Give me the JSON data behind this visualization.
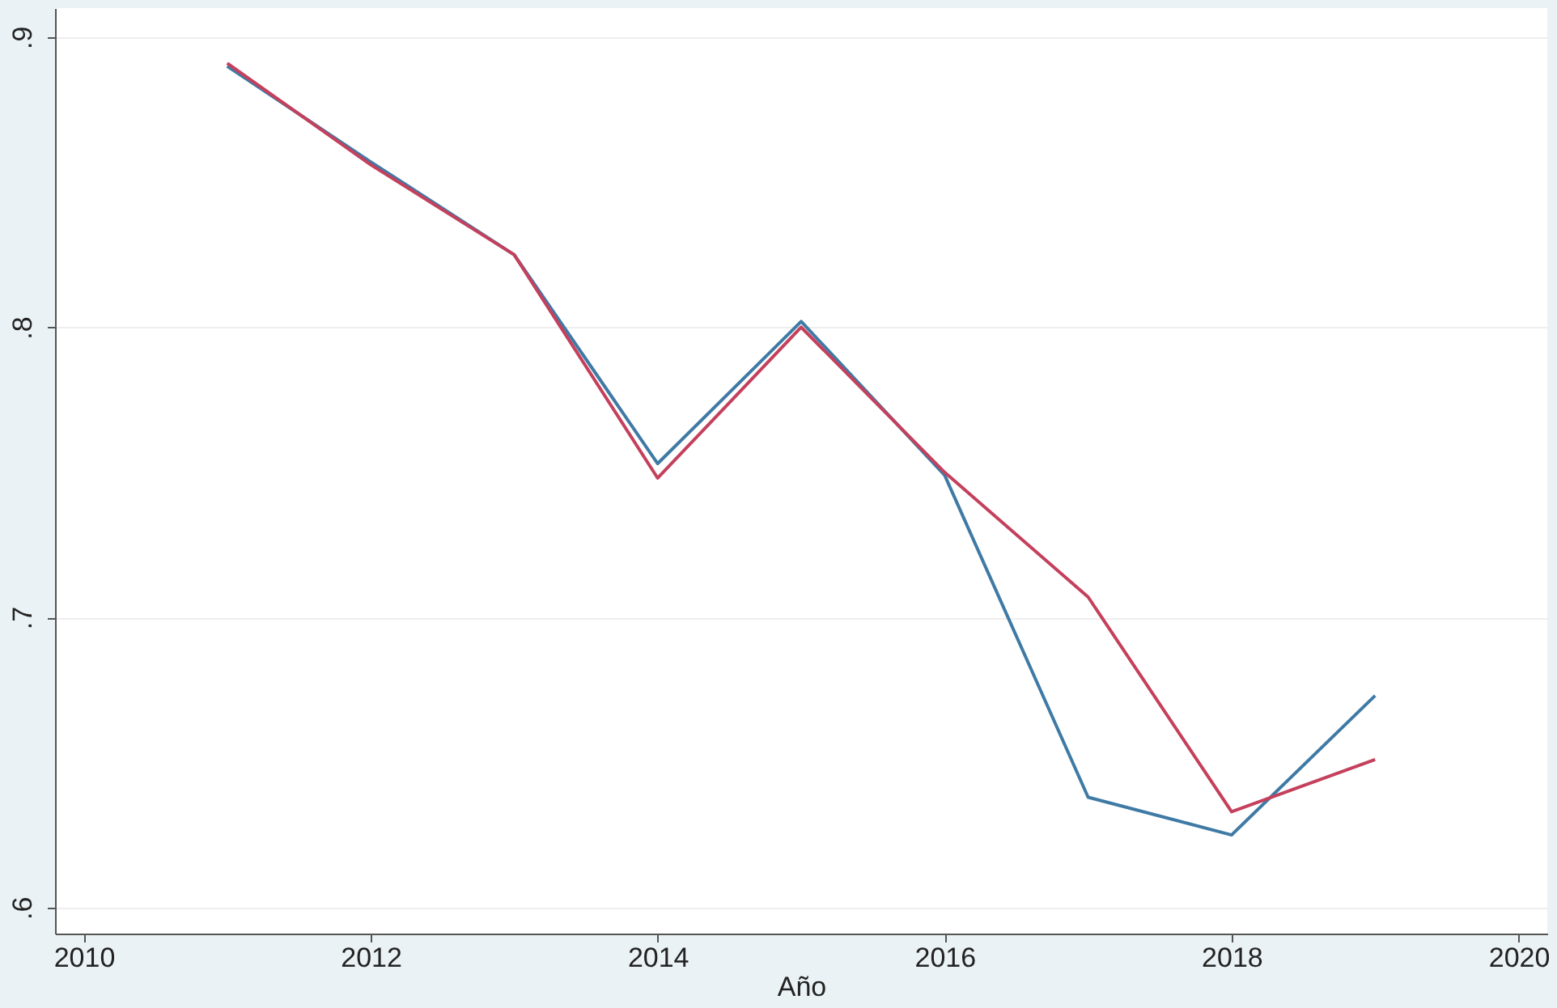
{
  "chart_data": {
    "type": "line",
    "xlabel": "Año",
    "x": [
      2011,
      2012,
      2013,
      2014,
      2015,
      2016,
      2017,
      2018,
      2019
    ],
    "series": [
      {
        "color": "#3f7aa5",
        "values": [
          0.89,
          0.857,
          0.825,
          0.753,
          0.802,
          0.749,
          0.638,
          0.625,
          0.673
        ]
      },
      {
        "color": "#c4405c",
        "values": [
          0.891,
          0.856,
          0.825,
          0.748,
          0.8,
          0.75,
          0.707,
          0.633,
          0.651
        ]
      }
    ],
    "xlim": [
      2009.8,
      2020.2
    ],
    "xticks": [
      2010,
      2012,
      2014,
      2016,
      2018,
      2020
    ],
    "ylim": [
      0.591,
      0.91
    ],
    "yticks": [
      {
        "value": 0.6,
        "label": ".6"
      },
      {
        "value": 0.7,
        "label": ".7"
      },
      {
        "value": 0.8,
        "label": ".8"
      },
      {
        "value": 0.9,
        "label": ".9"
      }
    ],
    "grid": "y",
    "legend": false,
    "marker": "none",
    "line_style": "solid"
  }
}
